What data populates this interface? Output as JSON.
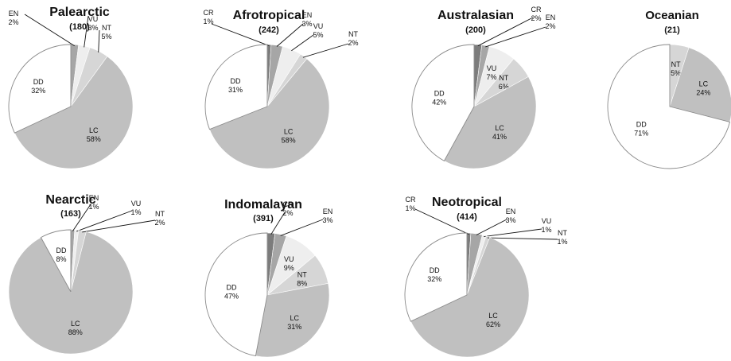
{
  "colors": {
    "CR": "#7c7c7c",
    "EN": "#a6a6a6",
    "VU": "#eeeeee",
    "NT": "#d6d6d6",
    "LC": "#c0c0c0",
    "DD": "#ffffff",
    "outline": "#8a8a8a"
  },
  "chart_data": [
    {
      "type": "pie",
      "title": "Palearctic",
      "count": "(180)",
      "slices": [
        {
          "label": "EN",
          "value": 2,
          "text": "2%"
        },
        {
          "label": "VU",
          "value": 3,
          "text": "3%"
        },
        {
          "label": "NT",
          "value": 5,
          "text": "5%"
        },
        {
          "label": "LC",
          "value": 58,
          "text": "58%"
        },
        {
          "label": "DD",
          "value": 32,
          "text": "32%"
        }
      ]
    },
    {
      "type": "pie",
      "title": "Afrotropical",
      "count": "(242)",
      "slices": [
        {
          "label": "CR",
          "value": 1,
          "text": "1%"
        },
        {
          "label": "EN",
          "value": 3,
          "text": "3%"
        },
        {
          "label": "VU",
          "value": 5,
          "text": "5%"
        },
        {
          "label": "NT",
          "value": 2,
          "text": "2%"
        },
        {
          "label": "LC",
          "value": 58,
          "text": "58%"
        },
        {
          "label": "DD",
          "value": 31,
          "text": "31%"
        }
      ]
    },
    {
      "type": "pie",
      "title": "Australasian",
      "count": "(200)",
      "slices": [
        {
          "label": "CR",
          "value": 2,
          "text": "2%"
        },
        {
          "label": "EN",
          "value": 2,
          "text": "2%"
        },
        {
          "label": "VU",
          "value": 7,
          "text": "7%"
        },
        {
          "label": "NT",
          "value": 6,
          "text": "6%"
        },
        {
          "label": "LC",
          "value": 41,
          "text": "41%"
        },
        {
          "label": "DD",
          "value": 42,
          "text": "42%"
        }
      ]
    },
    {
      "type": "pie",
      "title": "Oceanian",
      "count": "(21)",
      "slices": [
        {
          "label": "NT",
          "value": 5,
          "text": "5%"
        },
        {
          "label": "LC",
          "value": 24,
          "text": "24%"
        },
        {
          "label": "DD",
          "value": 71,
          "text": "71%"
        }
      ]
    },
    {
      "type": "pie",
      "title": "Nearctic",
      "count": "(163)",
      "slices": [
        {
          "label": "EN",
          "value": 1,
          "text": "1%"
        },
        {
          "label": "VU",
          "value": 1,
          "text": "1%"
        },
        {
          "label": "NT",
          "value": 2,
          "text": "2%"
        },
        {
          "label": "LC",
          "value": 88,
          "text": "88%"
        },
        {
          "label": "DD",
          "value": 8,
          "text": "8%"
        }
      ]
    },
    {
      "type": "pie",
      "title": "Indomalayan",
      "count": "(391)",
      "slices": [
        {
          "label": "CR",
          "value": 2,
          "text": "2%"
        },
        {
          "label": "EN",
          "value": 3,
          "text": "3%"
        },
        {
          "label": "VU",
          "value": 9,
          "text": "9%"
        },
        {
          "label": "NT",
          "value": 8,
          "text": "8%"
        },
        {
          "label": "LC",
          "value": 31,
          "text": "31%"
        },
        {
          "label": "DD",
          "value": 47,
          "text": "47%"
        }
      ]
    },
    {
      "type": "pie",
      "title": "Neotropical",
      "count": "(414)",
      "slices": [
        {
          "label": "CR",
          "value": 1,
          "text": "1%"
        },
        {
          "label": "EN",
          "value": 3,
          "text": "3%"
        },
        {
          "label": "VU",
          "value": 1,
          "text": "1%"
        },
        {
          "label": "NT",
          "value": 1,
          "text": "1%"
        },
        {
          "label": "LC",
          "value": 62,
          "text": "62%"
        },
        {
          "label": "DD",
          "value": 32,
          "text": "32%"
        }
      ]
    }
  ]
}
